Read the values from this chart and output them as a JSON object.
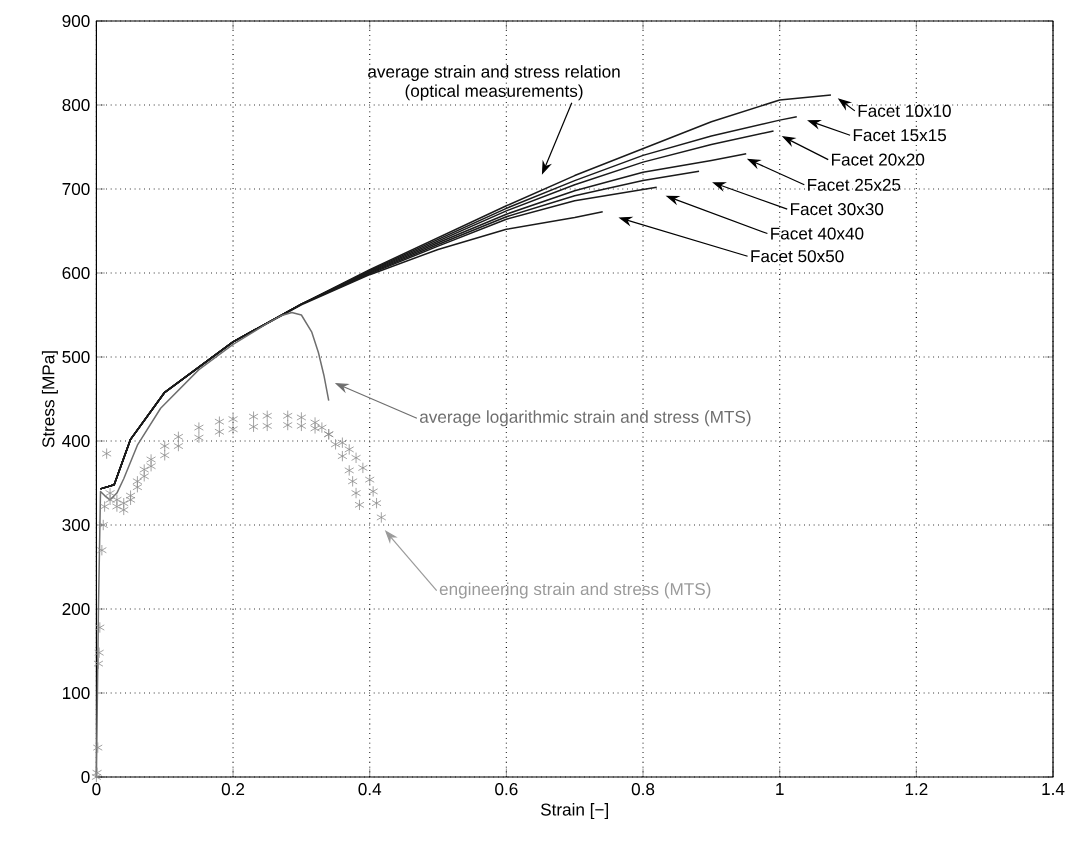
{
  "chart_data": {
    "type": "line",
    "xlabel": "Strain [−]",
    "ylabel": "Stress [MPa]",
    "xlim": [
      0,
      1.4
    ],
    "ylim": [
      0,
      900
    ],
    "xticks": [
      0,
      0.2,
      0.4,
      0.6,
      0.8,
      1,
      1.2,
      1.4
    ],
    "yticks": [
      0,
      100,
      200,
      300,
      400,
      500,
      600,
      700,
      800,
      900
    ],
    "grid": true,
    "line_style": "solid",
    "series": [
      {
        "color": "#1a1a1a",
        "marker": "none",
        "x": [
          0.006,
          0.026,
          0.05,
          0.1,
          0.2,
          0.3,
          0.4,
          0.5,
          0.6,
          0.7,
          0.8,
          0.9,
          1.0,
          1.075
        ],
        "values": [
          343,
          348,
          402,
          458,
          518,
          563,
          604,
          642,
          680,
          716,
          748,
          780,
          806,
          812
        ]
      },
      {
        "color": "#1a1a1a",
        "marker": "none",
        "x": [
          0.006,
          0.026,
          0.05,
          0.1,
          0.2,
          0.3,
          0.4,
          0.5,
          0.6,
          0.7,
          0.8,
          0.9,
          1.0,
          1.025
        ],
        "values": [
          343,
          348,
          402,
          458,
          518,
          563,
          603,
          640,
          677,
          710,
          740,
          763,
          782,
          786
        ]
      },
      {
        "color": "#1a1a1a",
        "marker": "none",
        "x": [
          0.006,
          0.026,
          0.05,
          0.1,
          0.2,
          0.3,
          0.4,
          0.5,
          0.6,
          0.7,
          0.8,
          0.9,
          0.991
        ],
        "values": [
          343,
          348,
          402,
          458,
          518,
          563,
          602,
          638,
          674,
          705,
          732,
          753,
          769
        ]
      },
      {
        "color": "#1a1a1a",
        "marker": "none",
        "x": [
          0.006,
          0.026,
          0.05,
          0.1,
          0.2,
          0.3,
          0.4,
          0.5,
          0.6,
          0.7,
          0.8,
          0.9,
          0.951
        ],
        "values": [
          343,
          348,
          402,
          458,
          518,
          563,
          601,
          636,
          670,
          698,
          720,
          734,
          742
        ]
      },
      {
        "color": "#1a1a1a",
        "marker": "none",
        "x": [
          0.006,
          0.026,
          0.05,
          0.1,
          0.2,
          0.3,
          0.4,
          0.5,
          0.6,
          0.7,
          0.8,
          0.882
        ],
        "values": [
          343,
          348,
          402,
          458,
          518,
          563,
          600,
          634,
          667,
          692,
          710,
          721
        ]
      },
      {
        "color": "#1a1a1a",
        "marker": "none",
        "x": [
          0.006,
          0.026,
          0.05,
          0.1,
          0.2,
          0.3,
          0.4,
          0.5,
          0.6,
          0.7,
          0.82
        ],
        "values": [
          343,
          348,
          402,
          458,
          518,
          563,
          599,
          632,
          664,
          686,
          702
        ]
      },
      {
        "color": "#1a1a1a",
        "marker": "none",
        "x": [
          0.006,
          0.026,
          0.05,
          0.1,
          0.2,
          0.3,
          0.4,
          0.5,
          0.6,
          0.7,
          0.741
        ],
        "values": [
          343,
          348,
          402,
          458,
          518,
          562,
          598,
          628,
          652,
          666,
          673
        ]
      },
      {
        "color": "#6e6e6e",
        "marker": "none",
        "x": [
          0,
          0.003,
          0.006,
          0.012,
          0.02,
          0.03,
          0.04,
          0.06,
          0.094,
          0.15,
          0.2,
          0.25,
          0.27,
          0.286,
          0.3,
          0.315,
          0.325,
          0.333,
          0.34
        ],
        "values": [
          0,
          200,
          340,
          335,
          330,
          338,
          355,
          395,
          439,
          485,
          515,
          540,
          549,
          553,
          550,
          530,
          505,
          478,
          448
        ]
      },
      {
        "type": "scatter",
        "color": "#8c8c8c",
        "marker": "cross",
        "x": [
          0,
          0.001,
          0.002,
          0.003,
          0.004,
          0.005,
          0.008,
          0.01,
          0.012,
          0.015,
          0.02,
          0.03,
          0.04,
          0.05,
          0.06,
          0.07,
          0.08,
          0.1,
          0.12,
          0.15,
          0.18,
          0.2,
          0.23,
          0.25,
          0.28,
          0.3,
          0.32,
          0.33,
          0.34,
          0.35,
          0.36,
          0.37,
          0.375,
          0.38,
          0.385,
          0.02,
          0.03,
          0.04,
          0.05,
          0.06,
          0.07,
          0.08,
          0.1,
          0.12,
          0.15,
          0.18,
          0.2,
          0.23,
          0.25,
          0.28,
          0.3,
          0.32,
          0.34,
          0.36,
          0.37,
          0.38,
          0.39,
          0.4,
          0.405,
          0.41,
          0.417
        ],
        "values": [
          0,
          5,
          35,
          135,
          148,
          178,
          270,
          300,
          322,
          385,
          330,
          322,
          318,
          335,
          352,
          366,
          378,
          394,
          405,
          416,
          423,
          426,
          429,
          430,
          430,
          428,
          422,
          416,
          408,
          396,
          382,
          365,
          352,
          338,
          324,
          338,
          330,
          326,
          330,
          345,
          358,
          370,
          383,
          394,
          404,
          411,
          414,
          417,
          418,
          419,
          418,
          415,
          408,
          398,
          390,
          380,
          368,
          354,
          340,
          326,
          309
        ]
      }
    ],
    "annotations": [
      "average strain and stress relation",
      "(optical measurements)",
      "Facet 10x10",
      "Facet 15x15",
      "Facet 20x20",
      "Facet 25x25",
      "Facet 30x30",
      "Facet 40x40",
      "Facet 50x50",
      "average logarithmic strain and stress (MTS)",
      "engineering strain and stress (MTS)"
    ]
  }
}
